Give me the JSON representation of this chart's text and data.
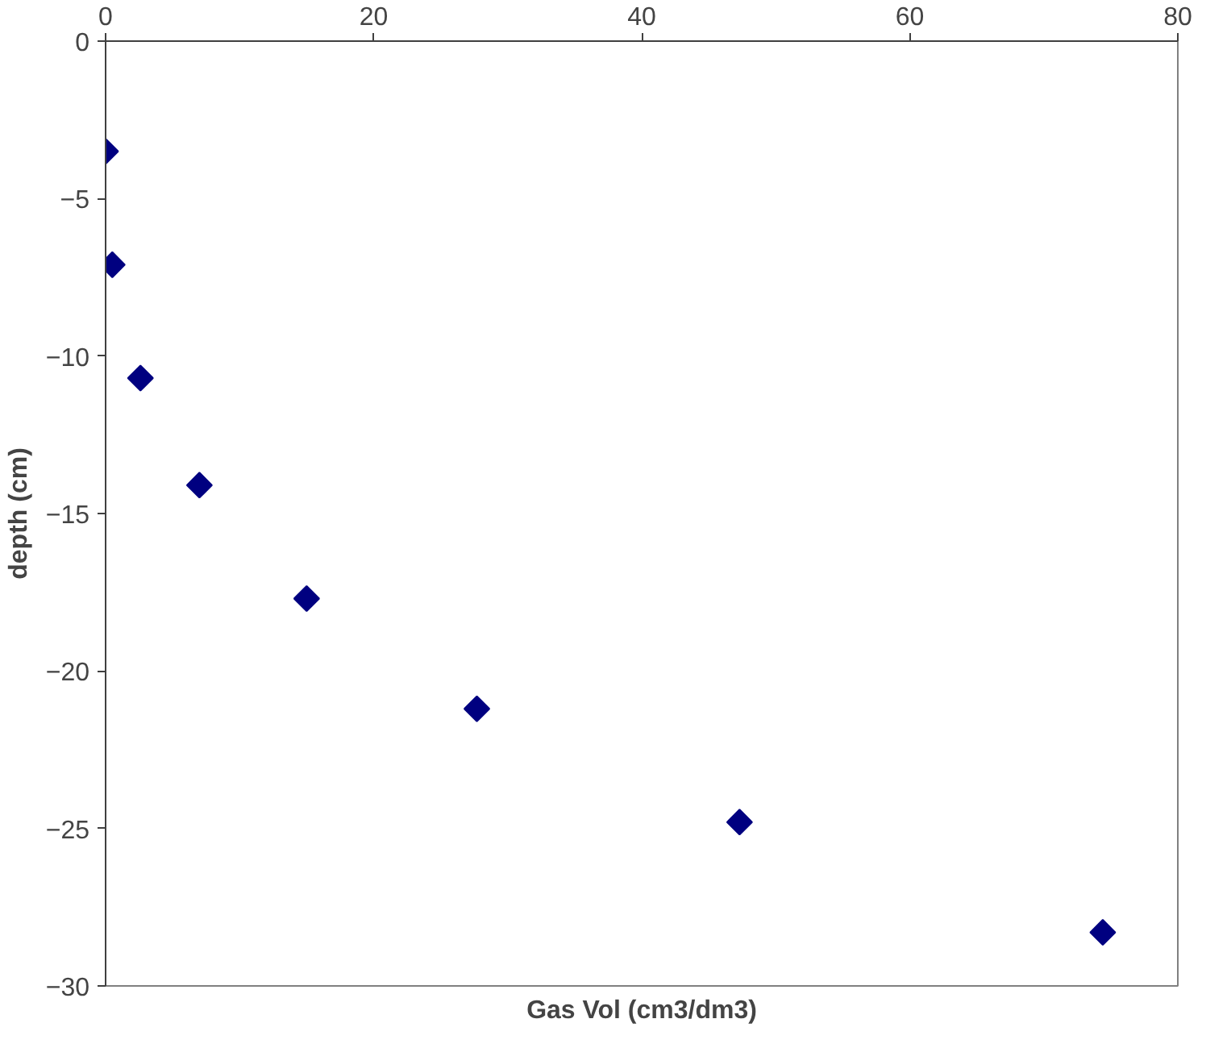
{
  "chart_data": {
    "type": "scatter",
    "xlabel": "Gas Vol (cm3/dm3)",
    "ylabel": "depth (cm)",
    "x": [
      0,
      0.5,
      2.6,
      7.0,
      15.0,
      27.7,
      47.3,
      74.4
    ],
    "series": [
      {
        "color": "#000080",
        "values": [
          -3.5,
          -7.1,
          -10.7,
          -14.1,
          -17.7,
          -21.2,
          -24.8,
          -28.3
        ]
      }
    ],
    "xlim": [
      0,
      80
    ],
    "xticks": [
      0,
      20,
      40,
      60,
      80
    ],
    "ylim": [
      -30,
      0
    ],
    "yticks": [
      -30,
      -25,
      -20,
      -15,
      -10,
      -5,
      0
    ],
    "marker": "diamond",
    "grid": false
  }
}
